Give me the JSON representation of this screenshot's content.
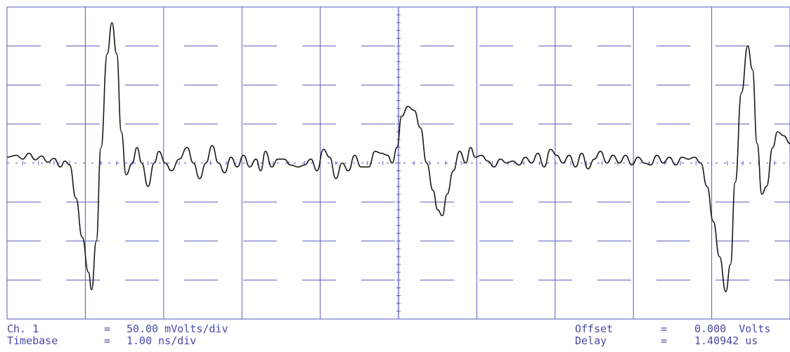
{
  "colors": {
    "grid": "#5a5abf",
    "trace": "#1a1a1a",
    "text": "#4a4aa6"
  },
  "readouts": {
    "ch_label": "Ch. 1",
    "ch_eq": "=",
    "ch_value": "50.00 mVolts/div",
    "timebase_label": "Timebase",
    "timebase_eq": "=",
    "timebase_value": "1.00 ns/div",
    "offset_label": "Offset",
    "offset_eq": "=",
    "offset_value": "0.000  Volts",
    "delay_label": "Delay",
    "delay_eq": "=",
    "delay_value": "1.40942 us"
  },
  "chart_data": {
    "type": "line",
    "grid": true,
    "x_divisions": 10,
    "y_divisions": 8,
    "xlim": [
      0,
      10
    ],
    "ylim": [
      -4,
      4
    ],
    "series": [
      {
        "values": [
          [
            0.0,
            0.15
          ],
          [
            0.12,
            0.2
          ],
          [
            0.2,
            0.1
          ],
          [
            0.28,
            0.25
          ],
          [
            0.36,
            0.08
          ],
          [
            0.44,
            0.18
          ],
          [
            0.52,
            0.02
          ],
          [
            0.6,
            0.12
          ],
          [
            0.68,
            -0.1
          ],
          [
            0.74,
            0.05
          ],
          [
            0.8,
            -0.05
          ],
          [
            0.88,
            -0.9
          ],
          [
            0.96,
            -1.9
          ],
          [
            1.04,
            -2.8
          ],
          [
            1.08,
            -3.25
          ],
          [
            1.14,
            -2.0
          ],
          [
            1.2,
            0.4
          ],
          [
            1.28,
            2.8
          ],
          [
            1.34,
            3.6
          ],
          [
            1.4,
            2.8
          ],
          [
            1.46,
            0.8
          ],
          [
            1.52,
            -0.3
          ],
          [
            1.6,
            0.0
          ],
          [
            1.66,
            0.4
          ],
          [
            1.72,
            0.0
          ],
          [
            1.8,
            -0.6
          ],
          [
            1.88,
            0.0
          ],
          [
            1.94,
            0.3
          ],
          [
            2.02,
            0.0
          ],
          [
            2.1,
            -0.2
          ],
          [
            2.2,
            0.1
          ],
          [
            2.3,
            0.4
          ],
          [
            2.38,
            0.0
          ],
          [
            2.46,
            -0.4
          ],
          [
            2.54,
            0.0
          ],
          [
            2.62,
            0.45
          ],
          [
            2.7,
            0.0
          ],
          [
            2.78,
            -0.25
          ],
          [
            2.86,
            0.15
          ],
          [
            2.94,
            -0.1
          ],
          [
            3.02,
            0.2
          ],
          [
            3.1,
            -0.1
          ],
          [
            3.18,
            0.1
          ],
          [
            3.24,
            -0.2
          ],
          [
            3.3,
            0.3
          ],
          [
            3.38,
            -0.1
          ],
          [
            3.46,
            0.1
          ],
          [
            3.54,
            0.1
          ],
          [
            3.62,
            -0.05
          ],
          [
            3.72,
            -0.1
          ],
          [
            3.8,
            -0.05
          ],
          [
            3.88,
            0.1
          ],
          [
            3.96,
            -0.2
          ],
          [
            4.04,
            0.35
          ],
          [
            4.12,
            0.15
          ],
          [
            4.2,
            -0.4
          ],
          [
            4.28,
            0.0
          ],
          [
            4.36,
            -0.2
          ],
          [
            4.44,
            0.2
          ],
          [
            4.52,
            -0.1
          ],
          [
            4.62,
            -0.1
          ],
          [
            4.7,
            0.3
          ],
          [
            4.78,
            0.25
          ],
          [
            4.86,
            0.2
          ],
          [
            4.92,
            0.0
          ],
          [
            4.98,
            0.4
          ],
          [
            5.04,
            1.2
          ],
          [
            5.12,
            1.45
          ],
          [
            5.2,
            1.35
          ],
          [
            5.28,
            0.9
          ],
          [
            5.36,
            0.0
          ],
          [
            5.44,
            -0.7
          ],
          [
            5.5,
            -1.2
          ],
          [
            5.56,
            -1.35
          ],
          [
            5.62,
            -0.8
          ],
          [
            5.7,
            -0.2
          ],
          [
            5.78,
            0.3
          ],
          [
            5.86,
            0.0
          ],
          [
            5.92,
            0.4
          ],
          [
            5.98,
            0.15
          ],
          [
            6.06,
            0.2
          ],
          [
            6.14,
            0.05
          ],
          [
            6.22,
            -0.1
          ],
          [
            6.3,
            0.1
          ],
          [
            6.38,
            0.0
          ],
          [
            6.46,
            0.05
          ],
          [
            6.54,
            -0.05
          ],
          [
            6.62,
            0.15
          ],
          [
            6.7,
            0.0
          ],
          [
            6.78,
            0.25
          ],
          [
            6.86,
            -0.1
          ],
          [
            6.94,
            0.35
          ],
          [
            7.02,
            0.2
          ],
          [
            7.1,
            0.0
          ],
          [
            7.18,
            0.2
          ],
          [
            7.26,
            -0.1
          ],
          [
            7.34,
            0.25
          ],
          [
            7.42,
            -0.15
          ],
          [
            7.5,
            0.1
          ],
          [
            7.58,
            0.3
          ],
          [
            7.66,
            0.0
          ],
          [
            7.74,
            0.2
          ],
          [
            7.82,
            0.0
          ],
          [
            7.9,
            0.2
          ],
          [
            7.98,
            -0.05
          ],
          [
            8.06,
            0.15
          ],
          [
            8.14,
            0.0
          ],
          [
            8.22,
            -0.05
          ],
          [
            8.3,
            0.2
          ],
          [
            8.38,
            0.0
          ],
          [
            8.46,
            0.15
          ],
          [
            8.54,
            -0.05
          ],
          [
            8.62,
            0.15
          ],
          [
            8.7,
            0.1
          ],
          [
            8.78,
            0.15
          ],
          [
            8.86,
            0.0
          ],
          [
            8.94,
            -0.6
          ],
          [
            9.02,
            -1.5
          ],
          [
            9.1,
            -2.4
          ],
          [
            9.18,
            -3.3
          ],
          [
            9.24,
            -2.6
          ],
          [
            9.3,
            -0.5
          ],
          [
            9.38,
            1.8
          ],
          [
            9.46,
            3.0
          ],
          [
            9.52,
            2.4
          ],
          [
            9.58,
            0.5
          ],
          [
            9.64,
            -0.8
          ],
          [
            9.7,
            -0.6
          ],
          [
            9.78,
            0.4
          ],
          [
            9.84,
            0.8
          ],
          [
            9.92,
            0.7
          ],
          [
            10.0,
            0.5
          ]
        ]
      }
    ]
  }
}
